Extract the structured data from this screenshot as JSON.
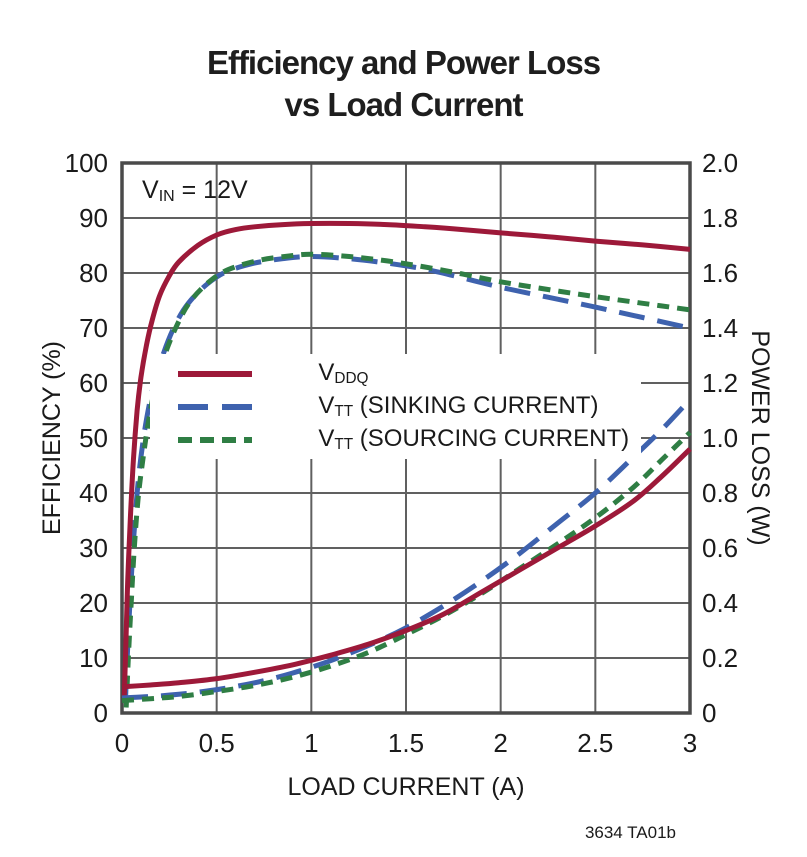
{
  "title": {
    "line1": "Efficiency and Power Loss",
    "line2": "vs Load Current"
  },
  "annotation": {
    "main": "V",
    "sub": "IN",
    "rest": " = 12V"
  },
  "legend": {
    "items": [
      {
        "main": "V",
        "sub": "DDQ",
        "rest": "",
        "color": "#9D1939",
        "dash": "solid"
      },
      {
        "main": "V",
        "sub": "TT",
        "rest": " (SINKING CURRENT)",
        "color": "#3E62AE",
        "dash": "long"
      },
      {
        "main": "V",
        "sub": "TT",
        "rest": " (SOURCING CURRENT)",
        "color": "#2F7E44",
        "dash": "short"
      }
    ]
  },
  "axes": {
    "x": {
      "label": "LOAD CURRENT (A)",
      "ticks": [
        {
          "label": "0",
          "v": 0
        },
        {
          "label": "0.5",
          "v": 0.5
        },
        {
          "label": "1",
          "v": 1
        },
        {
          "label": "1.5",
          "v": 1.5
        },
        {
          "label": "2",
          "v": 2
        },
        {
          "label": "2.5",
          "v": 2.5
        },
        {
          "label": "3",
          "v": 3
        }
      ]
    },
    "left": {
      "label": "EFFICIENCY (%)",
      "ticks": [
        {
          "label": "100",
          "v": 100
        },
        {
          "label": "90",
          "v": 90
        },
        {
          "label": "80",
          "v": 80
        },
        {
          "label": "70",
          "v": 70
        },
        {
          "label": "60",
          "v": 60
        },
        {
          "label": "50",
          "v": 50
        },
        {
          "label": "40",
          "v": 40
        },
        {
          "label": "30",
          "v": 30
        },
        {
          "label": "20",
          "v": 20
        },
        {
          "label": "10",
          "v": 10
        },
        {
          "label": "0",
          "v": 0
        }
      ]
    },
    "right": {
      "label": "POWER LOSS (W)",
      "ticks": [
        {
          "label": "2.0",
          "v": 2.0
        },
        {
          "label": "1.8",
          "v": 1.8
        },
        {
          "label": "1.6",
          "v": 1.6
        },
        {
          "label": "1.4",
          "v": 1.4
        },
        {
          "label": "1.2",
          "v": 1.2
        },
        {
          "label": "1.0",
          "v": 1.0
        },
        {
          "label": "0.8",
          "v": 0.8
        },
        {
          "label": "0.6",
          "v": 0.6
        },
        {
          "label": "0.4",
          "v": 0.4
        },
        {
          "label": "0.2",
          "v": 0.2
        },
        {
          "label": "0",
          "v": 0
        }
      ]
    }
  },
  "footer": {
    "note": "3634 TA01b"
  },
  "chart_data": {
    "type": "line",
    "title": "Efficiency and Power Loss vs Load Current",
    "condition": "VIN = 12V",
    "xlabel": "LOAD CURRENT (A)",
    "x_range": [
      0,
      3
    ],
    "y_left": {
      "label": "EFFICIENCY (%)",
      "range": [
        0,
        100
      ]
    },
    "y_right": {
      "label": "POWER LOSS (W)",
      "range": [
        0,
        2.0
      ]
    },
    "grid": true,
    "legend_position": "inside-middle-left",
    "series": [
      {
        "name": "VTT (SINKING CURRENT) efficiency",
        "axis": "left",
        "color": "#3E62AE",
        "dash": "long",
        "points": [
          [
            0.018,
            2
          ],
          [
            0.03,
            12
          ],
          [
            0.045,
            22
          ],
          [
            0.06,
            31
          ],
          [
            0.08,
            40
          ],
          [
            0.1,
            46.5
          ],
          [
            0.13,
            53.5
          ],
          [
            0.17,
            60
          ],
          [
            0.22,
            65.5
          ],
          [
            0.28,
            70.5
          ],
          [
            0.35,
            74.5
          ],
          [
            0.45,
            78
          ],
          [
            0.55,
            80.2
          ],
          [
            0.7,
            81.8
          ],
          [
            0.85,
            82.6
          ],
          [
            1.0,
            83
          ],
          [
            1.2,
            82.6
          ],
          [
            1.4,
            81.8
          ],
          [
            1.6,
            80.7
          ],
          [
            1.8,
            79.1
          ],
          [
            2.0,
            77.4
          ],
          [
            2.25,
            75.6
          ],
          [
            2.5,
            73.8
          ],
          [
            2.75,
            71.9
          ],
          [
            3.0,
            70
          ]
        ]
      },
      {
        "name": "VTT (SOURCING CURRENT) efficiency",
        "axis": "left",
        "color": "#2F7E44",
        "dash": "short",
        "points": [
          [
            0.022,
            1
          ],
          [
            0.035,
            11
          ],
          [
            0.05,
            21
          ],
          [
            0.065,
            30
          ],
          [
            0.085,
            39
          ],
          [
            0.11,
            46
          ],
          [
            0.14,
            53
          ],
          [
            0.18,
            60
          ],
          [
            0.23,
            65.5
          ],
          [
            0.29,
            70.5
          ],
          [
            0.36,
            74.8
          ],
          [
            0.46,
            78.4
          ],
          [
            0.56,
            80.6
          ],
          [
            0.71,
            82.2
          ],
          [
            0.86,
            83
          ],
          [
            1.0,
            83.4
          ],
          [
            1.2,
            83
          ],
          [
            1.4,
            82.2
          ],
          [
            1.6,
            81.1
          ],
          [
            1.8,
            79.8
          ],
          [
            2.0,
            78.4
          ],
          [
            2.25,
            77
          ],
          [
            2.5,
            75.7
          ],
          [
            2.75,
            74.5
          ],
          [
            3.0,
            73.3
          ]
        ]
      },
      {
        "name": "VDDQ efficiency",
        "axis": "left",
        "color": "#9D1939",
        "dash": "solid",
        "points": [
          [
            0.012,
            3
          ],
          [
            0.02,
            12
          ],
          [
            0.03,
            24
          ],
          [
            0.045,
            36
          ],
          [
            0.06,
            46
          ],
          [
            0.08,
            55
          ],
          [
            0.1,
            61
          ],
          [
            0.13,
            67
          ],
          [
            0.16,
            71.5
          ],
          [
            0.2,
            76
          ],
          [
            0.25,
            79.5
          ],
          [
            0.3,
            82
          ],
          [
            0.4,
            85
          ],
          [
            0.5,
            86.9
          ],
          [
            0.6,
            87.9
          ],
          [
            0.7,
            88.4
          ],
          [
            0.85,
            88.8
          ],
          [
            1.0,
            89
          ],
          [
            1.2,
            89
          ],
          [
            1.4,
            88.8
          ],
          [
            1.6,
            88.4
          ],
          [
            1.8,
            87.9
          ],
          [
            2.0,
            87.3
          ],
          [
            2.25,
            86.6
          ],
          [
            2.5,
            85.8
          ],
          [
            2.75,
            85.1
          ],
          [
            3.0,
            84.3
          ]
        ]
      },
      {
        "name": "VTT (SINKING CURRENT) power loss",
        "axis": "right",
        "color": "#3E62AE",
        "dash": "long",
        "points": [
          [
            0,
            0.055
          ],
          [
            0.15,
            0.06
          ],
          [
            0.3,
            0.068
          ],
          [
            0.5,
            0.085
          ],
          [
            0.7,
            0.11
          ],
          [
            0.9,
            0.145
          ],
          [
            1.1,
            0.19
          ],
          [
            1.3,
            0.245
          ],
          [
            1.5,
            0.31
          ],
          [
            1.7,
            0.39
          ],
          [
            1.9,
            0.48
          ],
          [
            2.1,
            0.58
          ],
          [
            2.3,
            0.69
          ],
          [
            2.5,
            0.8
          ],
          [
            2.7,
            0.93
          ],
          [
            2.85,
            1.03
          ],
          [
            3.0,
            1.14
          ]
        ]
      },
      {
        "name": "VTT (SOURCING CURRENT) power loss",
        "axis": "right",
        "color": "#2F7E44",
        "dash": "short",
        "points": [
          [
            0,
            0.045
          ],
          [
            0.15,
            0.052
          ],
          [
            0.3,
            0.06
          ],
          [
            0.5,
            0.078
          ],
          [
            0.7,
            0.1
          ],
          [
            0.9,
            0.13
          ],
          [
            1.1,
            0.17
          ],
          [
            1.3,
            0.22
          ],
          [
            1.5,
            0.285
          ],
          [
            1.7,
            0.355
          ],
          [
            1.9,
            0.435
          ],
          [
            2.1,
            0.525
          ],
          [
            2.3,
            0.615
          ],
          [
            2.5,
            0.71
          ],
          [
            2.7,
            0.82
          ],
          [
            2.85,
            0.92
          ],
          [
            3.0,
            1.02
          ]
        ]
      },
      {
        "name": "VDDQ power loss",
        "axis": "right",
        "color": "#9D1939",
        "dash": "solid",
        "points": [
          [
            0,
            0.095
          ],
          [
            0.15,
            0.102
          ],
          [
            0.3,
            0.11
          ],
          [
            0.5,
            0.125
          ],
          [
            0.7,
            0.148
          ],
          [
            0.9,
            0.175
          ],
          [
            1.1,
            0.21
          ],
          [
            1.3,
            0.25
          ],
          [
            1.5,
            0.3
          ],
          [
            1.7,
            0.36
          ],
          [
            1.9,
            0.44
          ],
          [
            2.1,
            0.52
          ],
          [
            2.3,
            0.6
          ],
          [
            2.5,
            0.68
          ],
          [
            2.7,
            0.77
          ],
          [
            2.85,
            0.86
          ],
          [
            3.0,
            0.96
          ]
        ]
      }
    ]
  }
}
